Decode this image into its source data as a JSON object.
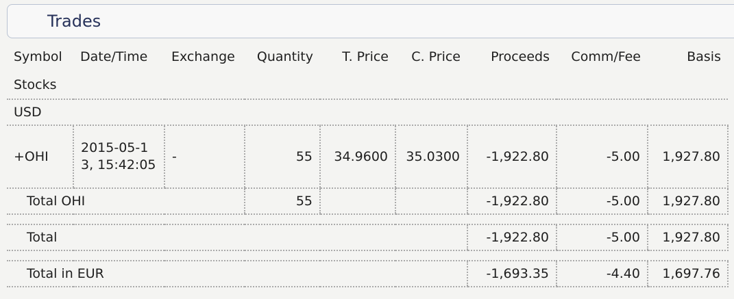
{
  "header": {
    "title": "Trades"
  },
  "table": {
    "columns": [
      "Symbol",
      "Date/Time",
      "Exchange",
      "Quantity",
      "T. Price",
      "C. Price",
      "Proceeds",
      "Comm/Fee",
      "Basis"
    ],
    "asset_category": "Stocks",
    "currency": "USD",
    "trade": {
      "symbol": "+OHI",
      "date_time": "2015-05-13, 15:42:05",
      "exchange": "-",
      "quantity": "55",
      "t_price": "34.9600",
      "c_price": "35.0300",
      "proceeds": "-1,922.80",
      "comm_fee": "-5.00",
      "basis": "1,927.80"
    },
    "totals": [
      {
        "label": "Total OHI",
        "quantity": "55",
        "proceeds": "-1,922.80",
        "comm_fee": "-5.00",
        "basis": "1,927.80"
      },
      {
        "label": "Total",
        "proceeds": "-1,922.80",
        "comm_fee": "-5.00",
        "basis": "1,927.80"
      },
      {
        "label": "Total in EUR",
        "proceeds": "-1,693.35",
        "comm_fee": "-4.40",
        "basis": "1,697.76"
      }
    ]
  }
}
